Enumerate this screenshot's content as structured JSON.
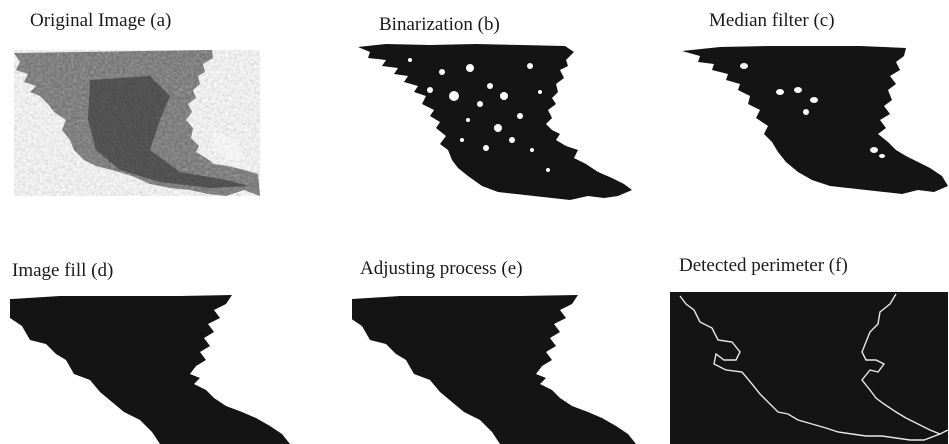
{
  "panels": [
    {
      "caption": "Original Image (a)"
    },
    {
      "caption": "Binarization (b)"
    },
    {
      "caption": "Median filter (c)"
    },
    {
      "caption": "Image fill (d)"
    },
    {
      "caption": "Adjusting process (e)"
    },
    {
      "caption": "Detected perimeter (f)"
    }
  ],
  "colors": {
    "background": "#ffffff",
    "smoke_gray": "#6a6a6a",
    "mask_black": "#141414",
    "perimeter_line": "#e8e8e8"
  }
}
